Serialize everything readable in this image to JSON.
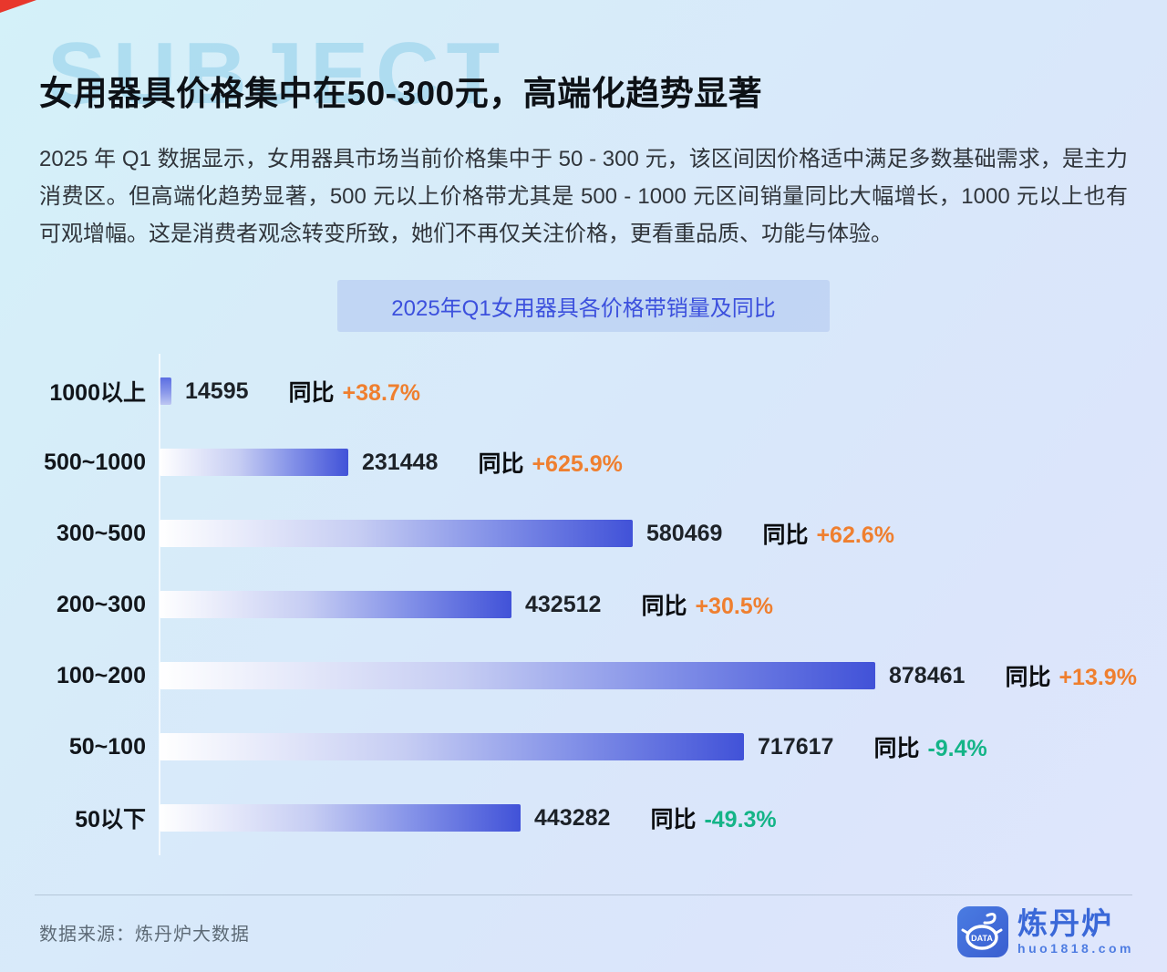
{
  "page": {
    "watermark": "SUBJECT",
    "title": "女用器具价格集中在50-300元，高端化趋势显著",
    "description": "2025 年 Q1 数据显示，女用器具市场当前价格集中于 50 - 300 元，该区间因价格适中满足多数基础需求，是主力消费区。但高端化趋势显著，500 元以上价格带尤其是 500 - 1000 元区间销量同比大幅增长，1000 元以上也有可观增幅。这是消费者观念转变所致，她们不再仅关注价格，更看重品质、功能与体验。"
  },
  "chart_data": {
    "type": "bar",
    "orientation": "horizontal",
    "title": "2025年Q1女用器具各价格带销量及同比",
    "categories": [
      "1000以上",
      "500~1000",
      "300~500",
      "200~300",
      "100~200",
      "50~100",
      "50以下"
    ],
    "values": [
      14595,
      231448,
      580469,
      432512,
      878461,
      717617,
      443282
    ],
    "yoy_label": "同比",
    "yoy": [
      "+38.7%",
      "+625.9%",
      "+62.6%",
      "+30.5%",
      "+13.9%",
      "-9.4%",
      "-49.3%"
    ],
    "xlim": [
      0,
      878461
    ],
    "legend": "none",
    "grid": "off",
    "colors": {
      "bar_gradient_start": "#ffffff",
      "bar_gradient_end": "#4152d8",
      "positive_pct": "#ef7f2f",
      "negative_pct": "#14b487"
    }
  },
  "footer": {
    "source": "数据来源：炼丹炉大数据",
    "logo_badge_text": "DATA",
    "logo_name": "炼丹炉",
    "logo_url": "huo1818.com"
  }
}
